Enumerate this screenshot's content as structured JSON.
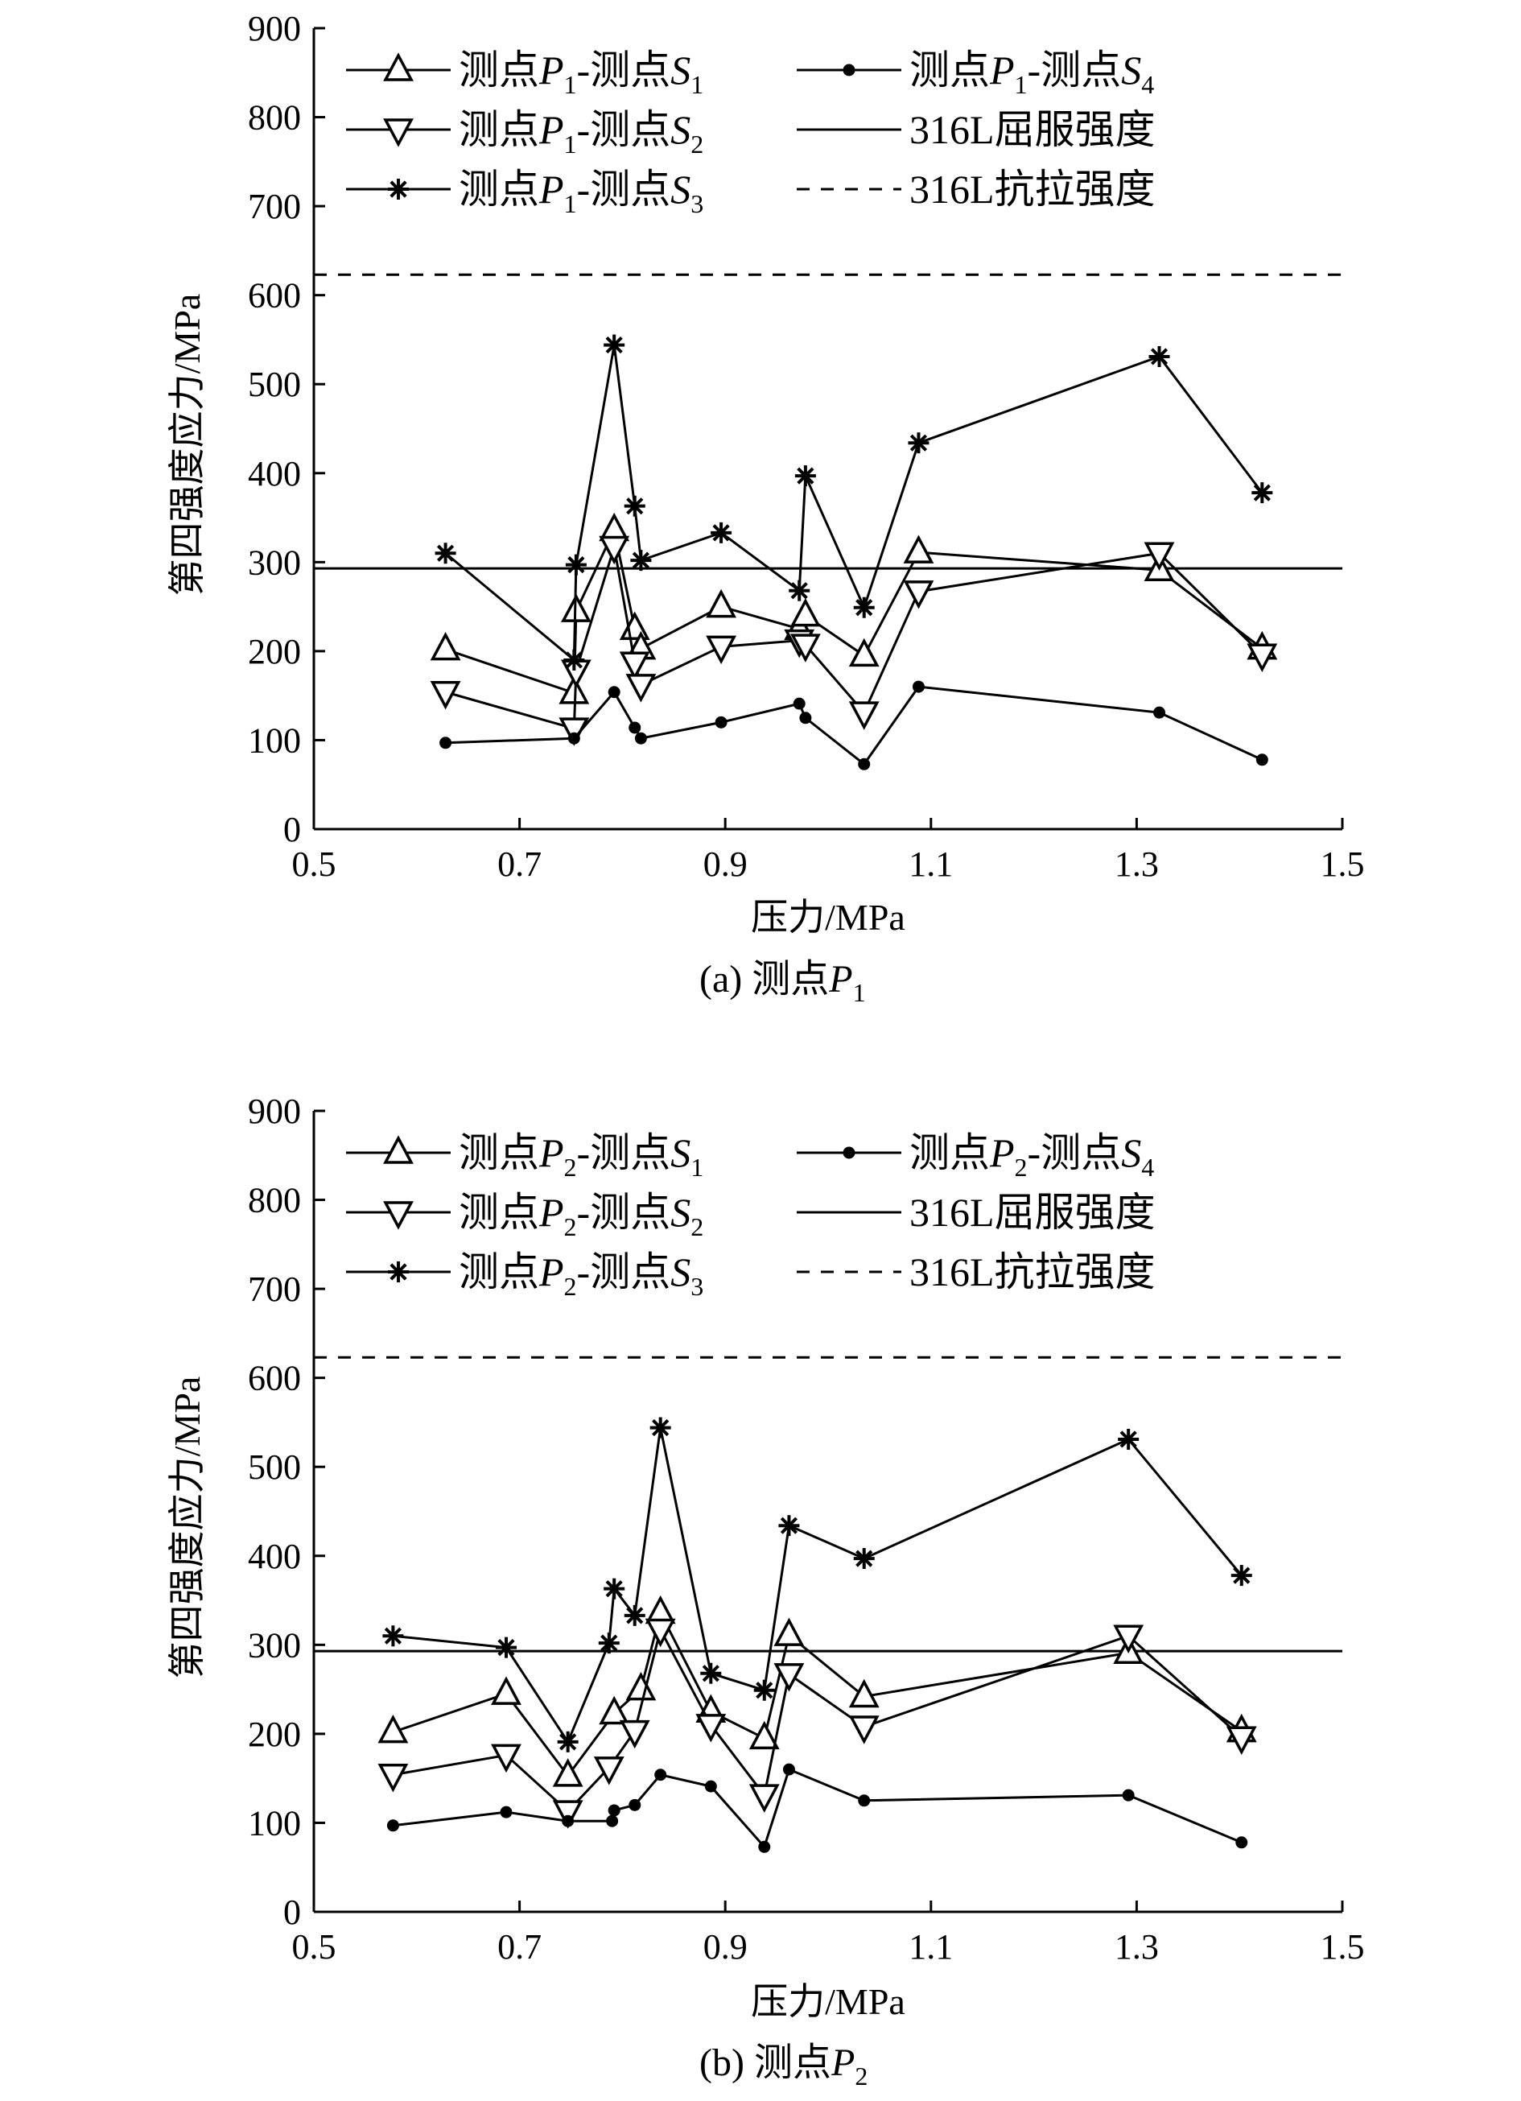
{
  "chart_data": [
    {
      "type": "line",
      "caption": "(a) 测点P1",
      "xlabel": "压力/MPa",
      "ylabel": "第四强度应力/MPa",
      "xlim": [
        0.5,
        1.5
      ],
      "ylim": [
        0,
        900
      ],
      "xticks": [
        "0.5",
        "0.7",
        "0.9",
        "1.1",
        "1.3",
        "1.5"
      ],
      "yticks": [
        "0",
        "100",
        "200",
        "300",
        "400",
        "500",
        "600",
        "700",
        "800",
        "900"
      ],
      "legend_position": "top",
      "series": [
        {
          "name": "测点P1-测点S1",
          "marker": "triangle-up",
          "x": [
            0.628,
            0.753,
            0.755,
            0.792,
            0.812,
            0.818,
            0.896,
            0.972,
            0.978,
            1.035,
            1.088,
            1.322,
            1.422
          ],
          "y": [
            202,
            153,
            245,
            336,
            225,
            203,
            250,
            225,
            240,
            195,
            311,
            291,
            203
          ]
        },
        {
          "name": "测点P1-测点S2",
          "marker": "triangle-down",
          "x": [
            0.628,
            0.753,
            0.755,
            0.792,
            0.812,
            0.818,
            0.896,
            0.972,
            0.978,
            1.035,
            1.088,
            1.322,
            1.422
          ],
          "y": [
            154,
            113,
            178,
            317,
            187,
            162,
            205,
            212,
            207,
            131,
            267,
            310,
            196
          ]
        },
        {
          "name": "测点P1-测点S3",
          "marker": "star",
          "x": [
            0.628,
            0.753,
            0.755,
            0.792,
            0.812,
            0.818,
            0.896,
            0.972,
            0.978,
            1.035,
            1.088,
            1.322,
            1.422
          ],
          "y": [
            310,
            190,
            297,
            544,
            363,
            302,
            333,
            268,
            397,
            249,
            434,
            531,
            378
          ]
        },
        {
          "name": "测点P1-测点S4",
          "marker": "dot",
          "x": [
            0.628,
            0.753,
            0.792,
            0.812,
            0.818,
            0.896,
            0.972,
            0.978,
            1.035,
            1.088,
            1.322,
            1.422
          ],
          "y": [
            97,
            102,
            154,
            114,
            102,
            120,
            141,
            125,
            73,
            160,
            131,
            78
          ]
        }
      ],
      "reference_lines": [
        {
          "name": "316L屈服强度",
          "y": 293,
          "style": "solid"
        },
        {
          "name": "316L抗拉强度",
          "y": 623,
          "style": "dashed"
        }
      ]
    },
    {
      "type": "line",
      "caption": "(b) 测点P2",
      "xlabel": "压力/MPa",
      "ylabel": "第四强度应力/MPa",
      "xlim": [
        0.5,
        1.5
      ],
      "ylim": [
        0,
        900
      ],
      "xticks": [
        "0.5",
        "0.7",
        "0.9",
        "1.1",
        "1.3",
        "1.5"
      ],
      "yticks": [
        "0",
        "100",
        "200",
        "300",
        "400",
        "500",
        "600",
        "700",
        "800",
        "900"
      ],
      "legend_position": "top",
      "series": [
        {
          "name": "测点P2-测点S1",
          "marker": "triangle-up",
          "x": [
            0.577,
            0.687,
            0.747,
            0.792,
            0.818,
            0.837,
            0.886,
            0.938,
            0.962,
            1.035,
            1.292,
            1.402
          ],
          "y": [
            202,
            245,
            153,
            223,
            250,
            336,
            225,
            195,
            311,
            242,
            291,
            203
          ]
        },
        {
          "name": "测点P2-测点S2",
          "marker": "triangle-down",
          "x": [
            0.577,
            0.687,
            0.747,
            0.787,
            0.812,
            0.837,
            0.886,
            0.938,
            0.962,
            1.035,
            1.292,
            1.402
          ],
          "y": [
            154,
            176,
            113,
            162,
            203,
            317,
            210,
            131,
            267,
            208,
            310,
            196
          ]
        },
        {
          "name": "测点P2-测点S3",
          "marker": "star",
          "x": [
            0.577,
            0.687,
            0.747,
            0.787,
            0.792,
            0.812,
            0.837,
            0.886,
            0.938,
            0.962,
            1.035,
            1.292,
            1.402
          ],
          "y": [
            310,
            297,
            191,
            302,
            363,
            333,
            544,
            268,
            249,
            434,
            397,
            531,
            378
          ]
        },
        {
          "name": "测点P2-测点S4",
          "marker": "dot",
          "x": [
            0.577,
            0.687,
            0.747,
            0.79,
            0.792,
            0.812,
            0.837,
            0.886,
            0.938,
            0.962,
            1.035,
            1.292,
            1.402
          ],
          "y": [
            97,
            112,
            102,
            102,
            114,
            120,
            154,
            141,
            73,
            160,
            125,
            131,
            78
          ]
        }
      ],
      "reference_lines": [
        {
          "name": "316L屈服强度",
          "y": 293,
          "style": "solid"
        },
        {
          "name": "316L抗拉强度",
          "y": 623,
          "style": "dashed"
        }
      ]
    }
  ]
}
